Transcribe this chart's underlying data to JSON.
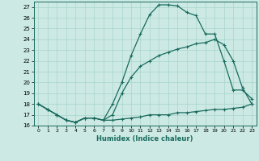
{
  "xlabel": "Humidex (Indice chaleur)",
  "xlim": [
    -0.5,
    23.5
  ],
  "ylim": [
    16,
    27.5
  ],
  "yticks": [
    16,
    17,
    18,
    19,
    20,
    21,
    22,
    23,
    24,
    25,
    26,
    27
  ],
  "xticks": [
    0,
    1,
    2,
    3,
    4,
    5,
    6,
    7,
    8,
    9,
    10,
    11,
    12,
    13,
    14,
    15,
    16,
    17,
    18,
    19,
    20,
    21,
    22,
    23
  ],
  "bg_color": "#cce9e4",
  "grid_color": "#a8d5cc",
  "line_color": "#1a6b5e",
  "line1_x": [
    0,
    1,
    2,
    3,
    4,
    5,
    6,
    7,
    8,
    9,
    10,
    11,
    12,
    13,
    14,
    15,
    16,
    17,
    18,
    19,
    20,
    21,
    22,
    23
  ],
  "line1_y": [
    18.0,
    17.5,
    17.0,
    16.5,
    16.3,
    16.7,
    16.7,
    16.5,
    18.0,
    20.0,
    22.5,
    24.5,
    26.3,
    27.2,
    27.2,
    27.1,
    26.5,
    26.2,
    24.5,
    24.5,
    22.0,
    19.3,
    19.3,
    18.5
  ],
  "line2_x": [
    0,
    1,
    2,
    3,
    4,
    5,
    6,
    7,
    8,
    9,
    10,
    11,
    12,
    13,
    14,
    15,
    16,
    17,
    18,
    19,
    20,
    21,
    22,
    23
  ],
  "line2_y": [
    18.0,
    17.5,
    17.0,
    16.5,
    16.3,
    16.7,
    16.7,
    16.5,
    17.0,
    19.0,
    20.5,
    21.5,
    22.0,
    22.5,
    22.8,
    23.1,
    23.3,
    23.6,
    23.7,
    24.0,
    23.5,
    22.0,
    19.5,
    18.0
  ],
  "line3_x": [
    0,
    1,
    2,
    3,
    4,
    5,
    6,
    7,
    8,
    9,
    10,
    11,
    12,
    13,
    14,
    15,
    16,
    17,
    18,
    19,
    20,
    21,
    22,
    23
  ],
  "line3_y": [
    18.0,
    17.5,
    17.0,
    16.5,
    16.3,
    16.7,
    16.7,
    16.5,
    16.5,
    16.6,
    16.7,
    16.8,
    17.0,
    17.0,
    17.0,
    17.2,
    17.2,
    17.3,
    17.4,
    17.5,
    17.5,
    17.6,
    17.7,
    18.0
  ]
}
